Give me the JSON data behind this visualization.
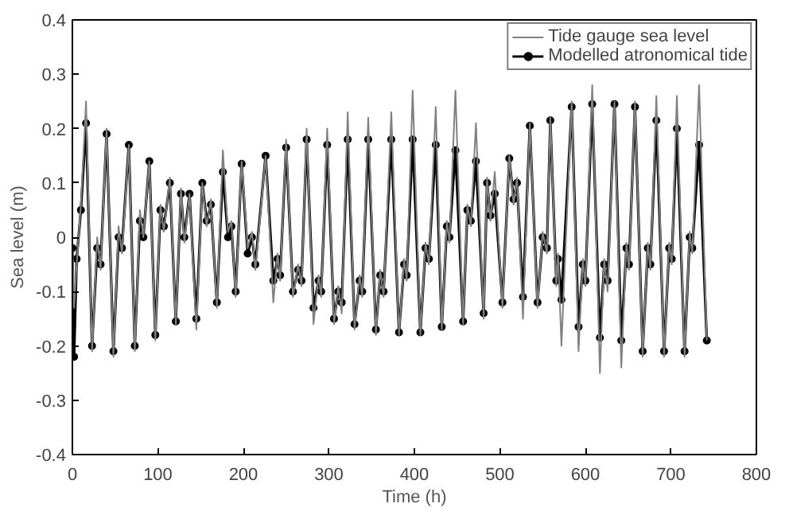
{
  "chart_data": {
    "type": "line",
    "xlabel": "Time (h)",
    "ylabel": "Sea level (m)",
    "xlim": [
      0,
      800
    ],
    "ylim": [
      -0.4,
      0.4
    ],
    "xticks": [
      0,
      100,
      200,
      300,
      400,
      500,
      600,
      700,
      800
    ],
    "yticks": [
      -0.4,
      -0.3,
      -0.2,
      -0.1,
      0,
      0.1,
      0.2,
      0.3,
      0.4
    ],
    "grid": false,
    "legend": "top right",
    "series": [
      {
        "name": "Tide gauge sea level",
        "color": "#808080",
        "marker": "none",
        "x": [
          0,
          2,
          5,
          10,
          16,
          23,
          29,
          33,
          40,
          48,
          54,
          58,
          66,
          73,
          79,
          83,
          90,
          97,
          103,
          107,
          114,
          121,
          127,
          131,
          137,
          145,
          152,
          157,
          162,
          169,
          176,
          182,
          186,
          191,
          198,
          205,
          210,
          214,
          226,
          235,
          240,
          243,
          250,
          258,
          264,
          268,
          274,
          282,
          288,
          291,
          298,
          306,
          311,
          315,
          322,
          330,
          336,
          339,
          346,
          355,
          360,
          364,
          373,
          382,
          388,
          391,
          398,
          407,
          413,
          417,
          425,
          432,
          438,
          441,
          448,
          457,
          462,
          466,
          472,
          481,
          485,
          489,
          494,
          503,
          511,
          516,
          520,
          527,
          535,
          544,
          550,
          555,
          559,
          566,
          568,
          572,
          584,
          592,
          597,
          600,
          608,
          617,
          622,
          626,
          634,
          642,
          648,
          651,
          658,
          667,
          673,
          676,
          683,
          692,
          698,
          701,
          707,
          716,
          722,
          725,
          733,
          742
        ],
        "values": [
          -0.01,
          -0.13,
          -0.05,
          0.06,
          0.25,
          -0.21,
          0.0,
          -0.06,
          0.2,
          -0.22,
          0.02,
          -0.03,
          0.17,
          -0.21,
          0.05,
          0.0,
          0.14,
          -0.19,
          0.06,
          0.01,
          0.11,
          -0.16,
          0.09,
          -0.01,
          0.08,
          -0.17,
          0.1,
          0.02,
          0.07,
          -0.13,
          0.16,
          0.01,
          0.03,
          -0.11,
          0.14,
          -0.02,
          0.01,
          -0.06,
          0.15,
          -0.12,
          -0.03,
          -0.08,
          0.18,
          -0.11,
          -0.05,
          -0.09,
          0.2,
          -0.16,
          -0.07,
          -0.11,
          0.2,
          -0.16,
          -0.09,
          -0.14,
          0.23,
          -0.17,
          -0.07,
          -0.11,
          0.22,
          -0.18,
          -0.06,
          -0.11,
          0.23,
          -0.18,
          -0.04,
          -0.08,
          0.27,
          -0.18,
          -0.01,
          -0.05,
          0.24,
          -0.17,
          0.03,
          -0.01,
          0.27,
          -0.16,
          0.06,
          0.02,
          0.21,
          -0.15,
          0.11,
          0.03,
          0.12,
          -0.13,
          0.15,
          0.06,
          0.11,
          -0.15,
          0.21,
          -0.13,
          0.01,
          -0.03,
          0.22,
          -0.09,
          -0.03,
          -0.2,
          0.25,
          -0.21,
          -0.04,
          -0.09,
          0.28,
          -0.25,
          -0.04,
          -0.1,
          0.25,
          -0.24,
          -0.01,
          -0.06,
          0.25,
          -0.22,
          -0.01,
          -0.06,
          0.26,
          -0.22,
          -0.01,
          -0.05,
          0.26,
          -0.22,
          0.01,
          -0.03,
          0.28,
          -0.19
        ]
      },
      {
        "name": "Modelled atronomical tide",
        "color": "#000000",
        "marker": "circle",
        "x": [
          0,
          2,
          5,
          10,
          16,
          23,
          29,
          33,
          40,
          48,
          54,
          58,
          66,
          73,
          79,
          83,
          90,
          97,
          103,
          107,
          114,
          121,
          127,
          131,
          137,
          145,
          152,
          157,
          162,
          169,
          176,
          182,
          186,
          191,
          198,
          205,
          210,
          214,
          226,
          235,
          240,
          243,
          250,
          258,
          264,
          268,
          274,
          282,
          288,
          291,
          298,
          306,
          311,
          315,
          322,
          330,
          336,
          339,
          346,
          355,
          360,
          364,
          373,
          382,
          388,
          391,
          398,
          407,
          413,
          417,
          425,
          432,
          438,
          441,
          448,
          457,
          462,
          466,
          472,
          481,
          485,
          489,
          494,
          503,
          511,
          516,
          520,
          527,
          535,
          544,
          550,
          555,
          559,
          566,
          568,
          572,
          584,
          592,
          597,
          600,
          608,
          617,
          622,
          626,
          634,
          642,
          648,
          651,
          658,
          667,
          673,
          676,
          683,
          692,
          698,
          701,
          707,
          716,
          722,
          725,
          733,
          742
        ],
        "values": [
          -0.02,
          -0.22,
          -0.04,
          0.05,
          0.21,
          -0.2,
          -0.02,
          -0.05,
          0.19,
          -0.21,
          0.0,
          -0.02,
          0.17,
          -0.2,
          0.03,
          0.0,
          0.14,
          -0.18,
          0.05,
          0.02,
          0.1,
          -0.155,
          0.08,
          0.0,
          0.08,
          -0.15,
          0.1,
          0.03,
          0.06,
          -0.12,
          0.12,
          0.0,
          0.02,
          -0.1,
          0.135,
          -0.03,
          0.0,
          -0.05,
          0.15,
          -0.08,
          -0.04,
          -0.07,
          0.165,
          -0.1,
          -0.06,
          -0.08,
          0.18,
          -0.13,
          -0.08,
          -0.1,
          0.17,
          -0.15,
          -0.1,
          -0.12,
          0.18,
          -0.16,
          -0.08,
          -0.1,
          0.18,
          -0.17,
          -0.07,
          -0.1,
          0.18,
          -0.175,
          -0.05,
          -0.07,
          0.18,
          -0.175,
          -0.02,
          -0.04,
          0.17,
          -0.165,
          0.02,
          0.0,
          0.16,
          -0.155,
          0.05,
          0.03,
          0.14,
          -0.14,
          0.1,
          0.04,
          0.08,
          -0.12,
          0.145,
          0.07,
          0.1,
          -0.11,
          0.205,
          -0.12,
          0.0,
          -0.02,
          0.215,
          -0.08,
          -0.04,
          -0.115,
          0.24,
          -0.165,
          -0.05,
          -0.08,
          0.245,
          -0.185,
          -0.05,
          -0.08,
          0.245,
          -0.19,
          -0.02,
          -0.05,
          0.24,
          -0.21,
          -0.02,
          -0.05,
          0.215,
          -0.21,
          -0.02,
          -0.04,
          0.2,
          -0.21,
          0.0,
          -0.02,
          0.17,
          -0.19
        ]
      }
    ]
  }
}
